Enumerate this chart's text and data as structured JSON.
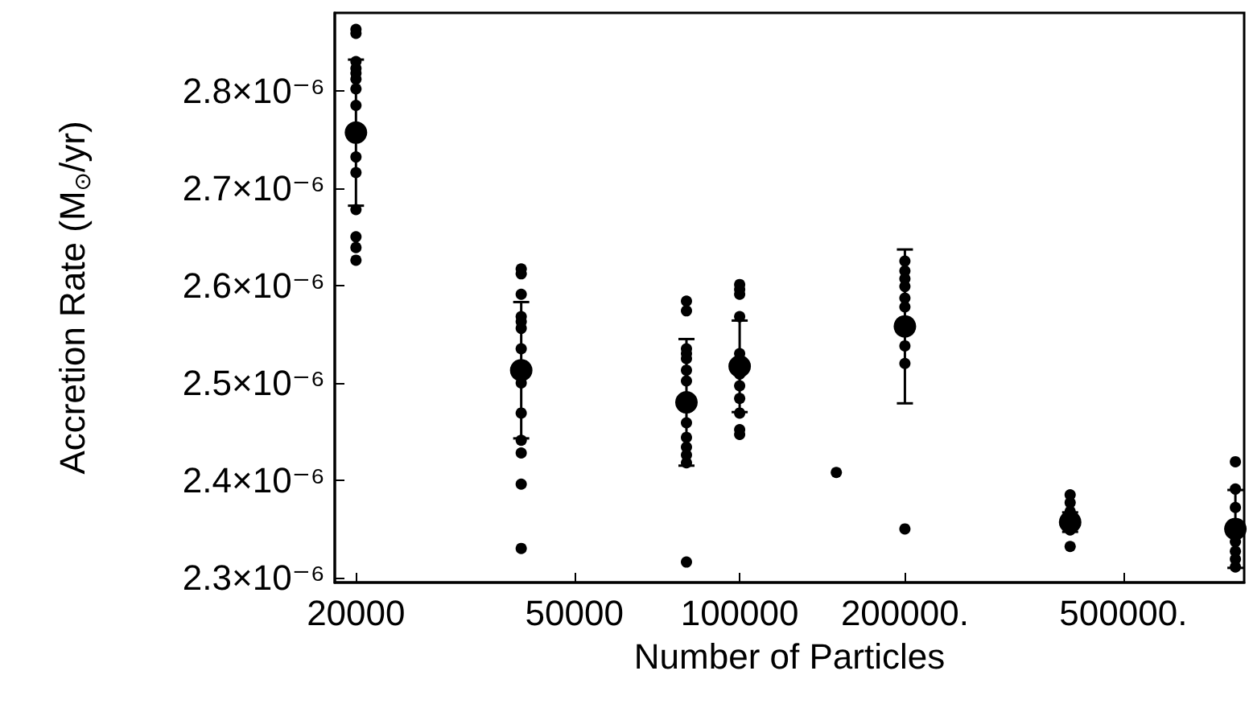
{
  "chart_data": {
    "type": "scatter",
    "xlabel": "Number of Particles",
    "ylabel": "Accretion Rate (M$_{⊙}$/yr)",
    "log": "x",
    "xlim": [
      18300,
      830000
    ],
    "xticks": [
      20000,
      50000,
      100000,
      {
        "value": 200000,
        "label": "200000."
      },
      {
        "value": 500000,
        "label": "500000."
      }
    ],
    "ylim": [
      2.295e-06,
      2.88e-06
    ],
    "yticks": [
      {
        "value": 2.3e-06,
        "label": "2.3×10⁻⁶"
      },
      {
        "value": 2.4e-06,
        "label": "2.4×10⁻⁶"
      },
      {
        "value": 2.5e-06,
        "label": "2.5×10⁻⁶"
      },
      {
        "value": 2.6e-06,
        "label": "2.6×10⁻⁶"
      },
      {
        "value": 2.7e-06,
        "label": "2.7×10⁻⁶"
      },
      {
        "value": 2.8e-06,
        "label": "2.8×10⁻⁶"
      }
    ],
    "grid": false,
    "marker": "circle",
    "series": [
      {
        "color": "#000000",
        "x": [
          20000,
          20000,
          20000,
          20000,
          20000,
          20000,
          20000,
          20000,
          20000,
          20000,
          20000,
          20000,
          20000,
          20000,
          40000,
          40000,
          40000,
          40000,
          40000,
          40000,
          40000,
          40000,
          40000,
          40000,
          40000,
          40000,
          40000,
          80000,
          80000,
          80000,
          80000,
          80000,
          80000,
          80000,
          80000,
          80000,
          80000,
          80000,
          80000,
          80000,
          100000,
          100000,
          100000,
          100000,
          100000,
          100000,
          100000,
          100000,
          100000,
          100000,
          100000,
          150000,
          200000,
          200000,
          200000,
          200000,
          200000,
          200000,
          200000,
          200000,
          200000,
          400000,
          400000,
          400000,
          400000,
          400000,
          800000,
          800000,
          800000,
          800000,
          800000,
          800000,
          800000
        ],
        "values": [
          2.863e-06,
          2.859e-06,
          2.83e-06,
          2.823e-06,
          2.818e-06,
          2.812e-06,
          2.802e-06,
          2.785e-06,
          2.732e-06,
          2.716e-06,
          2.678e-06,
          2.65e-06,
          2.639e-06,
          2.626e-06,
          2.617e-06,
          2.612e-06,
          2.591e-06,
          2.568e-06,
          2.563e-06,
          2.556e-06,
          2.535e-06,
          2.5e-06,
          2.469e-06,
          2.441e-06,
          2.428e-06,
          2.396e-06,
          2.33e-06,
          2.584e-06,
          2.574e-06,
          2.535e-06,
          2.53e-06,
          2.525e-06,
          2.513e-06,
          2.502e-06,
          2.459e-06,
          2.444e-06,
          2.434e-06,
          2.426e-06,
          2.418e-06,
          2.316e-06,
          2.601e-06,
          2.596e-06,
          2.591e-06,
          2.568e-06,
          2.53e-06,
          2.509e-06,
          2.497e-06,
          2.484e-06,
          2.469e-06,
          2.452e-06,
          2.447e-06,
          2.408e-06,
          2.625e-06,
          2.615e-06,
          2.607e-06,
          2.599e-06,
          2.587e-06,
          2.578e-06,
          2.538e-06,
          2.52e-06,
          2.35e-06,
          2.385e-06,
          2.377e-06,
          2.368e-06,
          2.349e-06,
          2.332e-06,
          2.419e-06,
          2.391e-06,
          2.372e-06,
          2.337e-06,
          2.327e-06,
          2.319e-06,
          2.311e-06
        ]
      },
      {
        "color": "#000000",
        "x": [
          20000,
          40000,
          80000,
          100000,
          200000,
          400000,
          800000
        ],
        "values": [
          2.757e-06,
          2.513e-06,
          2.48e-06,
          2.517e-06,
          2.558e-06,
          2.357e-06,
          2.35e-06
        ],
        "errors": [
          7.5e-08,
          7e-08,
          6.5e-08,
          4.7e-08,
          7.9e-08,
          1e-08,
          4e-08
        ]
      }
    ]
  }
}
